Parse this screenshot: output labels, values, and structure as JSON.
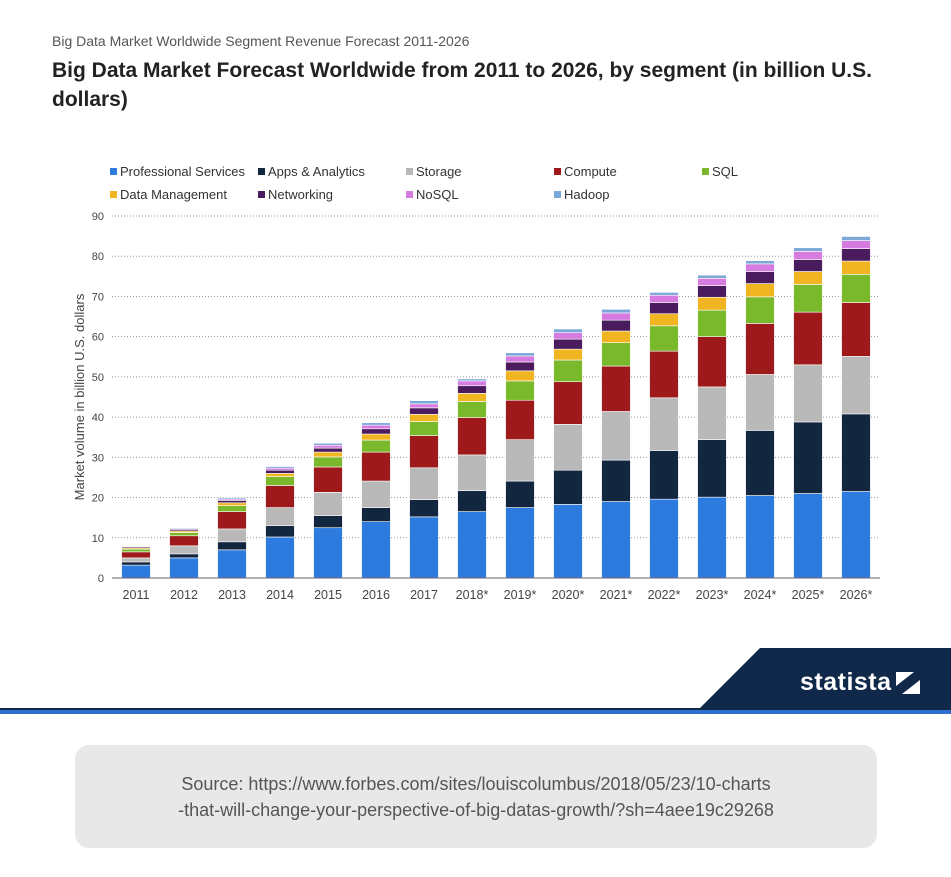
{
  "header": {
    "supertitle": "Big Data Market Worldwide Segment Revenue Forecast 2011-2026",
    "title": "Big Data Market Forecast Worldwide from 2011 to 2026, by segment (in billion U.S. dollars)"
  },
  "brand": {
    "name": "statista",
    "band_color": "#10294a",
    "accent_color": "#2f6fd0"
  },
  "source": {
    "line1": "Source: https://www.forbes.com/sites/louiscolumbus/2018/05/23/10-charts",
    "line2": "-that-will-change-your-perspective-of-big-datas-growth/?sh=4aee19c29268"
  },
  "chart_data": {
    "type": "bar",
    "stacked": true,
    "ylabel": "Market volume in billion U.S. dollars",
    "ylim": [
      0,
      90
    ],
    "yticks": [
      0,
      10,
      20,
      30,
      40,
      50,
      60,
      70,
      80,
      90
    ],
    "grid": true,
    "legend_position": "top",
    "categories": [
      "2011",
      "2012",
      "2013",
      "2014",
      "2015",
      "2016",
      "2017",
      "2018*",
      "2019*",
      "2020*",
      "2021*",
      "2022*",
      "2023*",
      "2024*",
      "2025*",
      "2026*"
    ],
    "series": [
      {
        "name": "Professional Services",
        "color": "#2e7be0",
        "values": [
          3.2,
          5.0,
          7.0,
          10.2,
          12.5,
          14.0,
          15.2,
          16.5,
          17.5,
          18.3,
          19.0,
          19.6,
          20.1,
          20.5,
          21.0,
          21.5
        ]
      },
      {
        "name": "Apps & Analytics",
        "color": "#13263f",
        "values": [
          0.8,
          1.0,
          2.0,
          2.8,
          3.0,
          3.5,
          4.3,
          5.2,
          6.6,
          8.5,
          10.3,
          12.1,
          14.3,
          16.2,
          17.8,
          19.3
        ]
      },
      {
        "name": "Storage",
        "color": "#b9b9b9",
        "values": [
          1.0,
          2.0,
          3.2,
          4.5,
          5.8,
          6.6,
          7.9,
          8.9,
          10.3,
          11.4,
          12.1,
          13.1,
          13.1,
          13.9,
          14.2,
          14.3
        ]
      },
      {
        "name": "Compute",
        "color": "#9e1a1a",
        "values": [
          1.5,
          2.5,
          4.3,
          5.5,
          6.3,
          7.2,
          8.0,
          9.3,
          9.8,
          10.6,
          11.3,
          11.6,
          12.5,
          12.7,
          13.1,
          13.4
        ]
      },
      {
        "name": "SQL",
        "color": "#7ab82c",
        "values": [
          0.7,
          0.8,
          1.5,
          2.2,
          2.5,
          3.0,
          3.5,
          4.0,
          4.8,
          5.4,
          5.8,
          6.3,
          6.6,
          6.6,
          6.9,
          7.0
        ]
      },
      {
        "name": "Data Management",
        "color": "#f0b520",
        "values": [
          0.3,
          0.4,
          0.7,
          0.8,
          1.2,
          1.5,
          1.8,
          2.0,
          2.5,
          2.7,
          2.9,
          3.0,
          3.2,
          3.3,
          3.2,
          3.3
        ]
      },
      {
        "name": "Networking",
        "color": "#4a1c5e",
        "values": [
          0.3,
          0.4,
          0.6,
          0.8,
          1.0,
          1.3,
          1.6,
          1.9,
          2.2,
          2.5,
          2.7,
          2.8,
          2.9,
          3.0,
          3.0,
          3.1
        ]
      },
      {
        "name": "NoSQL",
        "color": "#d67be0",
        "values": [
          0.1,
          0.2,
          0.3,
          0.5,
          0.7,
          0.9,
          1.0,
          1.2,
          1.5,
          1.6,
          1.8,
          1.8,
          1.8,
          1.9,
          2.0,
          2.0
        ]
      },
      {
        "name": "Hadoop",
        "color": "#7aa8d8",
        "values": [
          0.1,
          0.2,
          0.3,
          0.4,
          0.5,
          0.6,
          0.8,
          0.5,
          0.8,
          0.9,
          0.9,
          0.7,
          0.8,
          0.8,
          0.9,
          1.0
        ]
      }
    ]
  }
}
